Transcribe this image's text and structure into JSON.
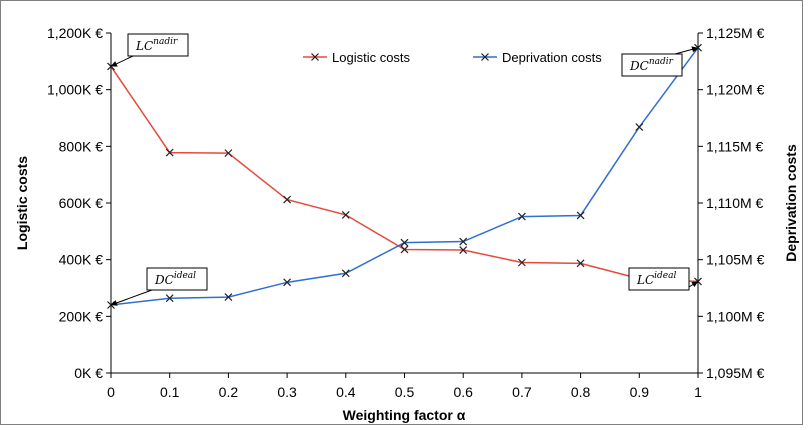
{
  "chart_data": {
    "type": "line",
    "xlabel": "Weighting factor α",
    "ylabel": "Logistic costs",
    "y2label": "Deprivation costs",
    "x": [
      0,
      0.1,
      0.2,
      0.3,
      0.4,
      0.5,
      0.6,
      0.7,
      0.8,
      0.9,
      1
    ],
    "x_tick_labels": [
      "0",
      "0.1",
      "0.2",
      "0.3",
      "0.4",
      "0.5",
      "0.6",
      "0.7",
      "0.8",
      "0.9",
      "1"
    ],
    "ylim": [
      0,
      1200
    ],
    "y_unit": "K €",
    "y_ticks": [
      0,
      200,
      400,
      600,
      800,
      1000,
      1200
    ],
    "y_tick_labels": [
      "0K €",
      "200K €",
      "400K €",
      "600K €",
      "800K €",
      "1,000K €",
      "1,200K €"
    ],
    "y2lim": [
      1095,
      1125
    ],
    "y2_unit": "M €",
    "y2_ticks": [
      1095,
      1100,
      1105,
      1110,
      1115,
      1120,
      1125
    ],
    "y2_tick_labels": [
      "1,095M €",
      "1,100M €",
      "1,105M €",
      "1,110M €",
      "1,115M €",
      "1,120M €",
      "1,125M €"
    ],
    "grid": false,
    "legend_position": "top-center",
    "series": [
      {
        "name": "Logistic costs",
        "axis": "left",
        "color": "#e8483d",
        "marker": "x",
        "values": [
          1082,
          778,
          776,
          612,
          558,
          436,
          434,
          390,
          387,
          333,
          323
        ]
      },
      {
        "name": "Deprivation costs",
        "axis": "right",
        "color": "#2e6fd1",
        "marker": "x",
        "values": [
          1101.0,
          1101.6,
          1101.7,
          1103.0,
          1103.8,
          1106.5,
          1106.6,
          1108.8,
          1108.9,
          1116.7,
          1123.7
        ]
      }
    ],
    "annotations": [
      {
        "base": "LC",
        "sup": "nadir",
        "series": "Logistic costs",
        "x": 0
      },
      {
        "base": "DC",
        "sup": "ideal",
        "series": "Deprivation costs",
        "x": 0
      },
      {
        "base": "DC",
        "sup": "nadir",
        "series": "Deprivation costs",
        "x": 1
      },
      {
        "base": "LC",
        "sup": "ideal",
        "series": "Logistic costs",
        "x": 1
      }
    ]
  }
}
